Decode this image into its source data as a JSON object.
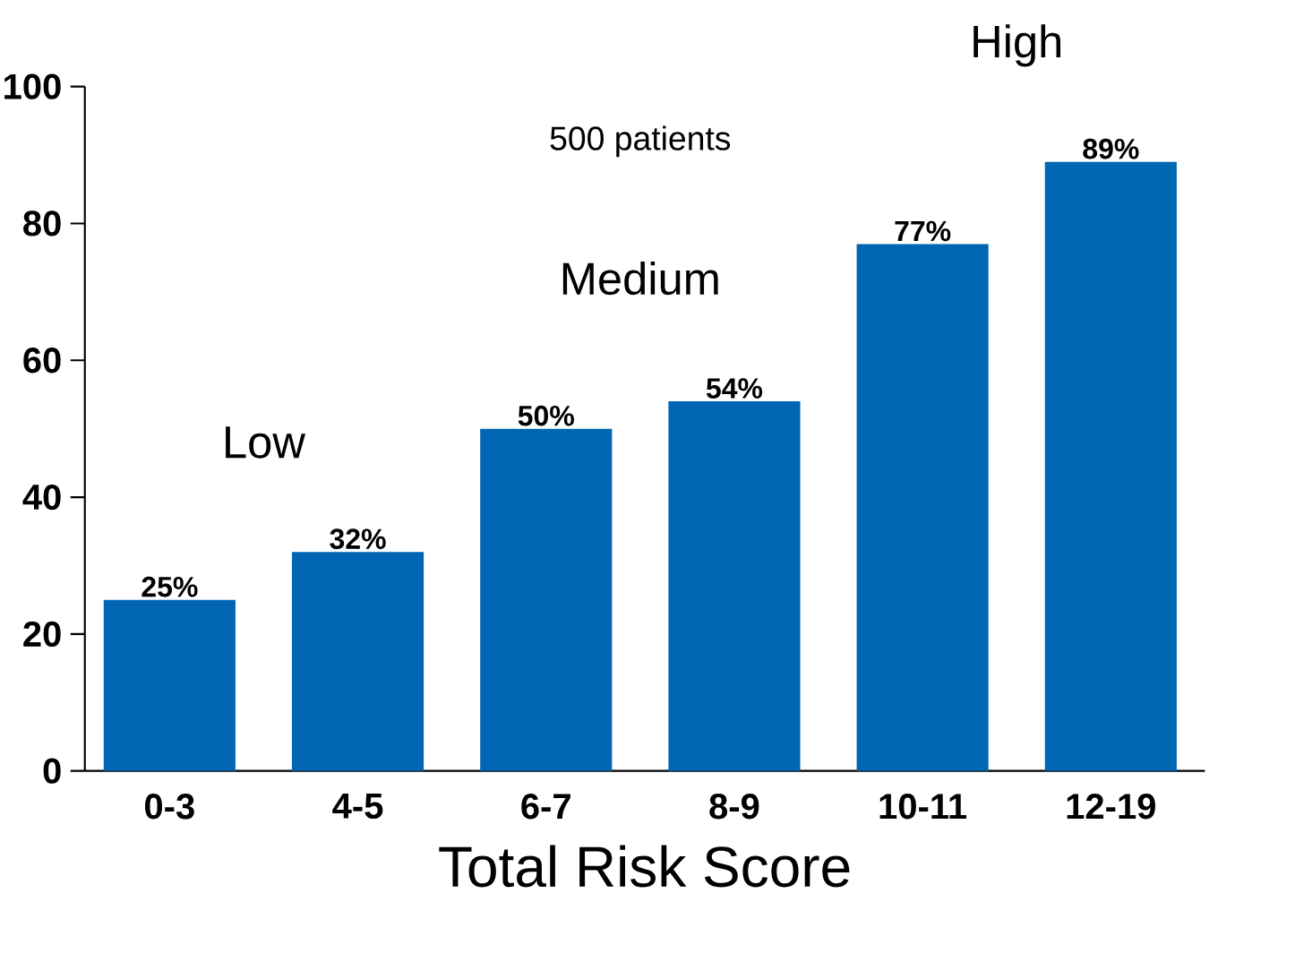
{
  "chart_data": {
    "type": "bar",
    "xlabel": "Total Risk Score",
    "categories": [
      "0-3",
      "4-5",
      "6-7",
      "8-9",
      "10-11",
      "12-19"
    ],
    "values": [
      25,
      32,
      50,
      54,
      77,
      89
    ],
    "value_labels": [
      "25%",
      "32%",
      "50%",
      "54%",
      "77%",
      "89%"
    ],
    "color": "#0066b3",
    "ylim": [
      0,
      100
    ],
    "yticks": [
      0,
      20,
      40,
      60,
      80,
      100
    ],
    "annotations": [
      "Low",
      "Medium",
      "High",
      "500 patients"
    ]
  }
}
